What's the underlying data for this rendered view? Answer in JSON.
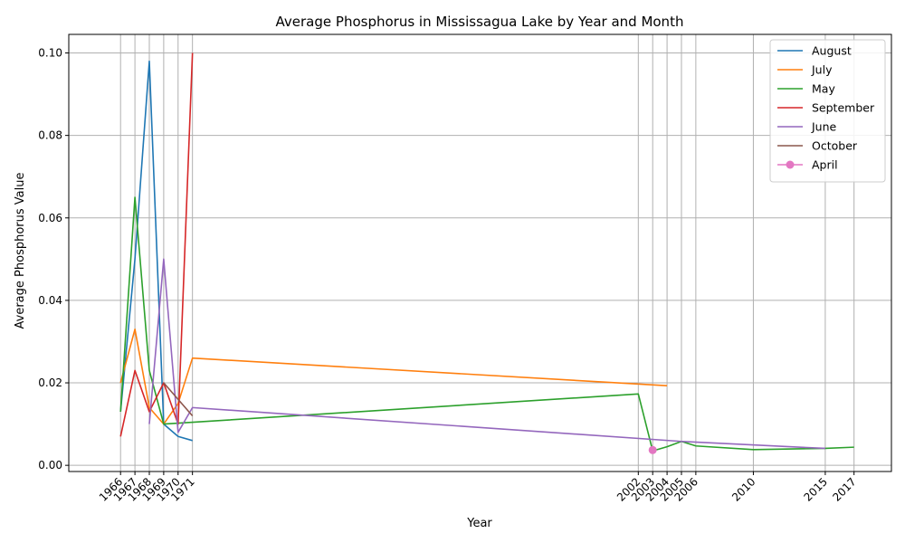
{
  "chart_data": {
    "type": "line",
    "title": "Average Phosphorus in Mississagua Lake by Year and Month",
    "xlabel": "Year",
    "ylabel": "Average Phosphorus Value",
    "xlim": [
      1962.4,
      2019.6
    ],
    "ylim": [
      -0.0015,
      0.1045
    ],
    "grid": true,
    "legend_position": "top-right",
    "x_ticks": [
      "1966",
      "1967",
      "1968",
      "1969",
      "1970",
      "1971",
      "2002",
      "2003",
      "2004",
      "2005",
      "2006",
      "2010",
      "2015",
      "2017"
    ],
    "y_ticks": [
      "0.00",
      "0.02",
      "0.04",
      "0.06",
      "0.08",
      "0.10"
    ],
    "series": [
      {
        "name": "August",
        "color": "#1f77b4",
        "marker": "none",
        "x": [
          1966,
          1967,
          1968,
          1969,
          1970,
          1971
        ],
        "y": [
          0.013,
          0.05,
          0.098,
          0.01,
          0.007,
          0.006
        ]
      },
      {
        "name": "July",
        "color": "#ff7f0e",
        "marker": "none",
        "x": [
          1966,
          1967,
          1968,
          1969,
          1970,
          1971,
          2004
        ],
        "y": [
          0.02,
          0.033,
          0.014,
          0.01,
          0.015,
          0.026,
          0.0193
        ]
      },
      {
        "name": "May",
        "color": "#2ca02c",
        "marker": "none",
        "x": [
          1966,
          1967,
          1968,
          1969,
          2002,
          2003,
          2004,
          2005,
          2006,
          2010,
          2015,
          2017
        ],
        "y": [
          0.013,
          0.065,
          0.023,
          0.01,
          0.0173,
          0.0035,
          0.0045,
          0.0058,
          0.0047,
          0.0038,
          0.0041,
          0.0044
        ]
      },
      {
        "name": "September",
        "color": "#d62728",
        "marker": "none",
        "x": [
          1966,
          1967,
          1968,
          1969,
          1970,
          1971
        ],
        "y": [
          0.007,
          0.023,
          0.013,
          0.02,
          0.01,
          0.1
        ]
      },
      {
        "name": "June",
        "color": "#9467bd",
        "marker": "none",
        "x": [
          1968,
          1969,
          1970,
          1971,
          2005,
          2015
        ],
        "y": [
          0.01,
          0.05,
          0.008,
          0.014,
          0.0058,
          0.0041
        ]
      },
      {
        "name": "October",
        "color": "#8c564b",
        "marker": "none",
        "x": [
          1969,
          1971
        ],
        "y": [
          0.02,
          0.012
        ]
      },
      {
        "name": "April",
        "color": "#e377c2",
        "marker": "circle",
        "x": [
          2003
        ],
        "y": [
          0.0037
        ]
      }
    ]
  }
}
